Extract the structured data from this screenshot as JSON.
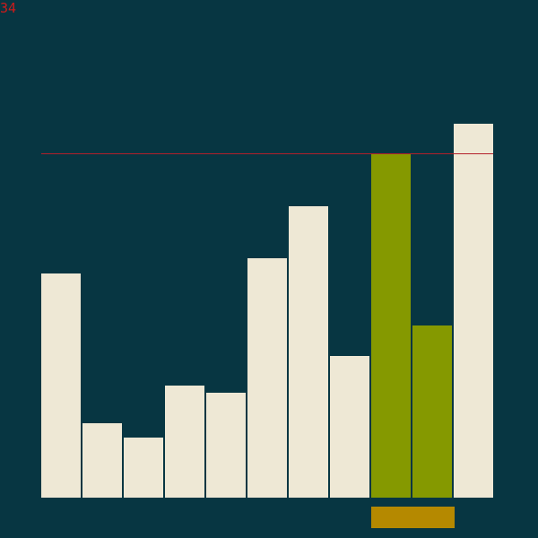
{
  "counter": "34",
  "colors": {
    "background": "#073642",
    "bar_default": "#eee8d5",
    "bar_highlight": "#859900",
    "threshold_line": "#b3202a",
    "marker": "#b58900",
    "counter_text": "#cc1b1b"
  },
  "scale_max": 100,
  "threshold_value": 92,
  "bars": [
    {
      "value": 60,
      "state": "default"
    },
    {
      "value": 20,
      "state": "default"
    },
    {
      "value": 16,
      "state": "default"
    },
    {
      "value": 30,
      "state": "default"
    },
    {
      "value": 28,
      "state": "default"
    },
    {
      "value": 64,
      "state": "default"
    },
    {
      "value": 78,
      "state": "default"
    },
    {
      "value": 38,
      "state": "default"
    },
    {
      "value": 92,
      "state": "highlight"
    },
    {
      "value": 46,
      "state": "highlight"
    },
    {
      "value": 100,
      "state": "default"
    }
  ],
  "marker_range": [
    8,
    9
  ]
}
